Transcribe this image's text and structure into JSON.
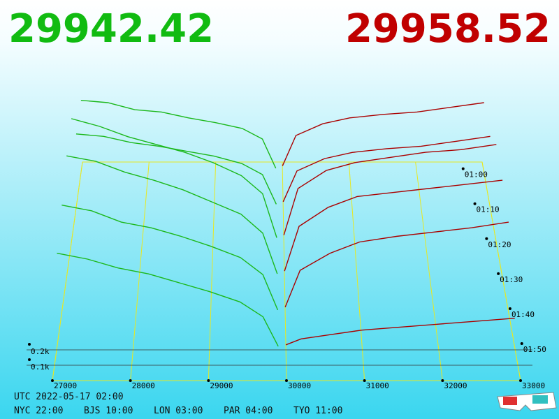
{
  "chart_data": {
    "type": "depth3d",
    "bid_price": "29942.42",
    "ask_price": "29958.52",
    "bid_color": "#1cb81c",
    "ask_color": "#aa0000",
    "xlim": [
      27000,
      33000
    ],
    "xticks": [
      27000,
      28000,
      29000,
      30000,
      31000,
      32000,
      33000
    ],
    "zticks": [
      {
        "value": 100,
        "label": "0.1k"
      },
      {
        "value": 200,
        "label": "0.2k"
      }
    ],
    "times": [
      "01:00",
      "01:10",
      "01:20",
      "01:30",
      "01:40",
      "01:50"
    ],
    "bid_x": [
      27000,
      27400,
      27800,
      28200,
      28600,
      29000,
      29400,
      29700,
      29900
    ],
    "ask_x": [
      30000,
      30200,
      30600,
      31000,
      31500,
      32000,
      32500,
      33000
    ],
    "bids": [
      {
        "name": "01:00",
        "values": [
          620,
          600,
          540,
          520,
          470,
          430,
          380,
          290,
          40
        ]
      },
      {
        "name": "01:10",
        "values": [
          600,
          580,
          530,
          500,
          460,
          420,
          360,
          270,
          30
        ]
      },
      {
        "name": "01:20",
        "values": [
          960,
          900,
          820,
          760,
          700,
          620,
          520,
          380,
          40
        ]
      },
      {
        "name": "01:30",
        "values": [
          900,
          860,
          780,
          720,
          650,
          560,
          470,
          330,
          30
        ]
      },
      {
        "name": "01:40",
        "values": [
          760,
          720,
          640,
          600,
          540,
          470,
          390,
          270,
          20
        ]
      },
      {
        "name": "01:50",
        "values": [
          640,
          600,
          540,
          500,
          440,
          380,
          310,
          210,
          10
        ]
      }
    ],
    "asks": [
      {
        "name": "01:00",
        "values": [
          60,
          320,
          420,
          470,
          500,
          520,
          560,
          600
        ]
      },
      {
        "name": "01:10",
        "values": [
          50,
          300,
          400,
          450,
          480,
          500,
          540,
          580
        ]
      },
      {
        "name": "01:20",
        "values": [
          60,
          420,
          560,
          620,
          660,
          700,
          720,
          760
        ]
      },
      {
        "name": "01:30",
        "values": [
          50,
          380,
          520,
          600,
          630,
          660,
          690,
          720
        ]
      },
      {
        "name": "01:40",
        "values": [
          40,
          300,
          420,
          500,
          540,
          570,
          600,
          640
        ]
      },
      {
        "name": "01:50",
        "values": [
          20,
          60,
          90,
          120,
          140,
          160,
          180,
          200
        ]
      }
    ],
    "footer": {
      "utc": "UTC 2022-05-17 02:00",
      "zones": [
        "NYC 22:00",
        "BJS 10:00",
        "LON 03:00",
        "PAR 04:00",
        "TYO 11:00"
      ]
    }
  }
}
